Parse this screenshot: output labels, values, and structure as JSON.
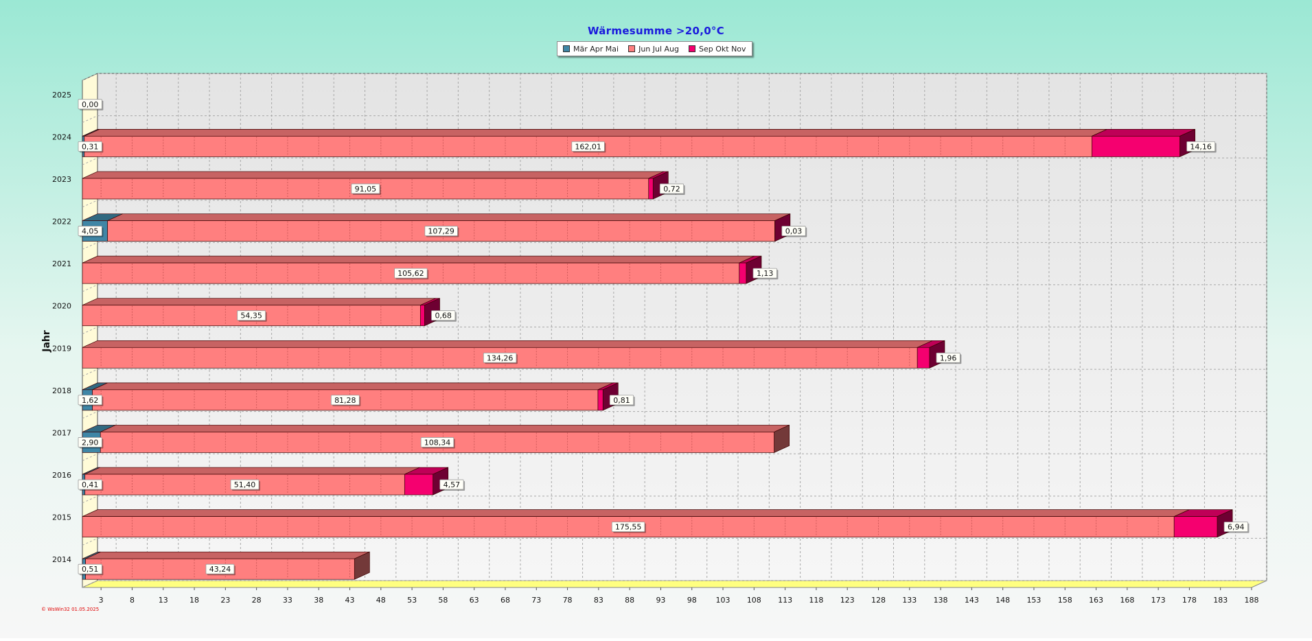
{
  "chart_data": {
    "type": "bar",
    "orientation": "horizontal",
    "stacked": true,
    "three_d": true,
    "title": "Wärmesumme  >20,0°C",
    "ylabel": "Jahr",
    "xlabel": "",
    "categories": [
      "2025",
      "2024",
      "2023",
      "2022",
      "2021",
      "2020",
      "2019",
      "2018",
      "2017",
      "2016",
      "2015",
      "2014"
    ],
    "series": [
      {
        "name": "Mär Apr Mai",
        "color": "#3f86a6",
        "values": [
          0,
          0.31,
          0,
          4.05,
          0,
          0,
          0,
          1.62,
          2.9,
          0.41,
          0,
          0.51
        ],
        "labels": [
          "0,00",
          "0,31",
          null,
          "4,05",
          null,
          null,
          null,
          "1,62",
          "2,90",
          "0,41",
          null,
          "0,51"
        ]
      },
      {
        "name": "Jun Jul Aug",
        "color": "#ff7f7f",
        "values": [
          0,
          162.01,
          91.05,
          107.29,
          105.62,
          54.35,
          134.26,
          81.28,
          108.34,
          51.4,
          175.55,
          43.24
        ],
        "labels": [
          null,
          "162,01",
          "91,05",
          "107,29",
          "105,62",
          "54,35",
          "134,26",
          "81,28",
          "108,34",
          "51,40",
          "175,55",
          "43,24"
        ]
      },
      {
        "name": "Sep Okt Nov",
        "color": "#f5006f",
        "values": [
          0,
          14.16,
          0.72,
          0.03,
          1.13,
          0.68,
          1.96,
          0.81,
          0,
          4.57,
          6.94,
          0
        ],
        "labels": [
          null,
          "14,16",
          "0,72",
          "0,03",
          "1,13",
          "0,68",
          "1,96",
          "0,81",
          null,
          "4,57",
          "6,94",
          null
        ]
      }
    ],
    "xlim": [
      0,
      188
    ],
    "xticks": [
      3,
      8,
      13,
      18,
      23,
      28,
      33,
      38,
      43,
      48,
      53,
      58,
      63,
      68,
      73,
      78,
      83,
      88,
      93,
      98,
      103,
      108,
      113,
      118,
      123,
      128,
      133,
      138,
      143,
      148,
      153,
      158,
      163,
      168,
      173,
      178,
      183,
      188
    ],
    "grid": true,
    "legend_position": "top-center"
  },
  "footer": {
    "watermark": "© WsWin32  01.05.2025"
  }
}
